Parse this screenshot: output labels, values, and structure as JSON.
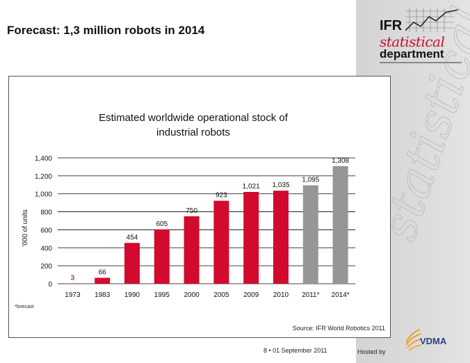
{
  "slide": {
    "title": "Forecast: 1,3 million robots in 2014",
    "footer_date": "8 •  01 September 2011",
    "hosted_by": "Hosted by",
    "watermark": "statistical"
  },
  "logo": {
    "ifr": "IFR",
    "statistical": "statistical",
    "department": "department",
    "vdma": "VDMA"
  },
  "colors": {
    "actual_bar": "#d20a2e",
    "forecast_bar": "#969696",
    "logo_red": "#c8102e",
    "vdma_blue": "#2d3e8c",
    "vdma_orange": "#f39200"
  },
  "chart_data": {
    "type": "bar",
    "title_lines": [
      "Estimated worldwide operational stock of",
      "industrial robots"
    ],
    "categories": [
      "1973",
      "1983",
      "1990",
      "1995",
      "2000",
      "2005",
      "2009",
      "2010",
      "2011*",
      "2014*"
    ],
    "values": [
      3,
      66,
      454,
      605,
      750,
      923,
      1021,
      1035,
      1095,
      1308
    ],
    "value_labels": [
      "3",
      "66",
      "454",
      "605",
      "750",
      "923",
      "1,021",
      "1,035",
      "1,095",
      "1,308"
    ],
    "forecast": [
      false,
      false,
      false,
      false,
      false,
      false,
      false,
      false,
      true,
      true
    ],
    "ylabel": "'000 of units",
    "xlabel": "",
    "ylim": [
      0,
      1400
    ],
    "yticks": [
      0,
      200,
      400,
      600,
      800,
      1000,
      1200,
      1400
    ],
    "ytick_labels": [
      "0",
      "200",
      "400",
      "600",
      "800",
      "1,000",
      "1,200",
      "1,400"
    ],
    "grid": true,
    "footnote": "*forecast",
    "source": "Source: IFR World Robotics 2011"
  }
}
